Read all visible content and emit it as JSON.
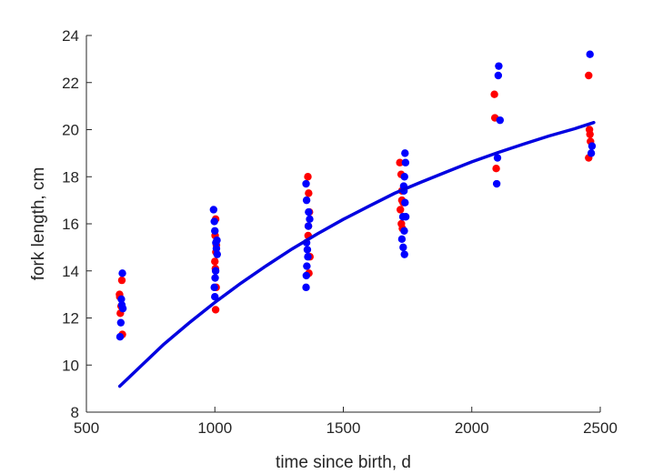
{
  "chart_data": {
    "type": "scatter",
    "title": "",
    "xlabel": "time since birth, d",
    "ylabel": "fork length, cm",
    "xlim": [
      500,
      2500
    ],
    "ylim": [
      8,
      24
    ],
    "xticks": [
      500,
      1000,
      1500,
      2000,
      2500
    ],
    "yticks": [
      8,
      10,
      12,
      14,
      16,
      18,
      20,
      22,
      24
    ],
    "grid": false,
    "colors": {
      "red": "#ff0000",
      "blue": "#0000ff",
      "curve": "#0000e0",
      "axis": "#262626"
    },
    "series": [
      {
        "color": "#ff0000",
        "points": [
          [
            630,
            12.9
          ],
          [
            632,
            12.2
          ],
          [
            635,
            12.5
          ],
          [
            638,
            13.6
          ],
          [
            640,
            11.3
          ],
          [
            629,
            13.0
          ],
          [
            1003,
            12.35
          ],
          [
            1005,
            13.3
          ],
          [
            1002,
            14.1
          ],
          [
            1000,
            14.4
          ],
          [
            1004,
            14.8
          ],
          [
            1006,
            15.1
          ],
          [
            1001,
            15.5
          ],
          [
            1003,
            16.2
          ],
          [
            1362,
            18.0
          ],
          [
            1365,
            17.3
          ],
          [
            1368,
            16.5
          ],
          [
            1363,
            15.5
          ],
          [
            1370,
            14.6
          ],
          [
            1366,
            13.9
          ],
          [
            1364,
            15.9
          ],
          [
            1720,
            18.6
          ],
          [
            1725,
            18.1
          ],
          [
            1728,
            17.0
          ],
          [
            1722,
            16.6
          ],
          [
            1726,
            16.0
          ],
          [
            1730,
            15.8
          ],
          [
            1733,
            16.9
          ],
          [
            1728,
            17.4
          ],
          [
            2088,
            21.5
          ],
          [
            2090,
            20.5
          ],
          [
            2095,
            18.35
          ],
          [
            2455,
            22.3
          ],
          [
            2458,
            20.0
          ],
          [
            2460,
            19.8
          ],
          [
            2462,
            19.5
          ],
          [
            2455,
            18.8
          ]
        ]
      },
      {
        "color": "#0000ff",
        "points": [
          [
            640,
            13.9
          ],
          [
            636,
            12.8
          ],
          [
            638,
            12.55
          ],
          [
            642,
            12.4
          ],
          [
            634,
            11.8
          ],
          [
            631,
            11.2
          ],
          [
            995,
            16.6
          ],
          [
            998,
            16.1
          ],
          [
            1000,
            15.7
          ],
          [
            1004,
            15.2
          ],
          [
            1008,
            15.3
          ],
          [
            1006,
            14.95
          ],
          [
            1009,
            14.7
          ],
          [
            1003,
            14.0
          ],
          [
            1001,
            13.7
          ],
          [
            998,
            13.3
          ],
          [
            1000,
            12.9
          ],
          [
            1355,
            17.7
          ],
          [
            1357,
            17.0
          ],
          [
            1365,
            16.5
          ],
          [
            1369,
            16.2
          ],
          [
            1364,
            15.9
          ],
          [
            1357,
            15.2
          ],
          [
            1360,
            14.9
          ],
          [
            1362,
            14.6
          ],
          [
            1358,
            14.2
          ],
          [
            1356,
            13.8
          ],
          [
            1355,
            13.3
          ],
          [
            1740,
            19.0
          ],
          [
            1742,
            18.6
          ],
          [
            1738,
            18.0
          ],
          [
            1735,
            17.6
          ],
          [
            1736,
            17.4
          ],
          [
            1740,
            16.9
          ],
          [
            1743,
            16.3
          ],
          [
            1732,
            16.3
          ],
          [
            1737,
            15.7
          ],
          [
            1728,
            15.35
          ],
          [
            1733,
            15.0
          ],
          [
            1738,
            14.7
          ],
          [
            2105,
            22.7
          ],
          [
            2103,
            22.3
          ],
          [
            2110,
            20.4
          ],
          [
            2100,
            18.8
          ],
          [
            2097,
            17.7
          ],
          [
            2460,
            23.2
          ],
          [
            2468,
            19.3
          ],
          [
            2465,
            19.0
          ]
        ]
      }
    ],
    "fit_curve": {
      "color": "#0000e0",
      "points": [
        [
          630,
          9.1
        ],
        [
          700,
          9.83
        ],
        [
          800,
          10.87
        ],
        [
          900,
          11.79
        ],
        [
          1000,
          12.66
        ],
        [
          1100,
          13.47
        ],
        [
          1200,
          14.22
        ],
        [
          1300,
          14.93
        ],
        [
          1400,
          15.58
        ],
        [
          1500,
          16.19
        ],
        [
          1600,
          16.75
        ],
        [
          1700,
          17.3
        ],
        [
          1800,
          17.76
        ],
        [
          1900,
          18.2
        ],
        [
          2000,
          18.63
        ],
        [
          2100,
          19.02
        ],
        [
          2200,
          19.38
        ],
        [
          2300,
          19.73
        ],
        [
          2400,
          20.04
        ],
        [
          2475,
          20.3
        ]
      ]
    }
  }
}
